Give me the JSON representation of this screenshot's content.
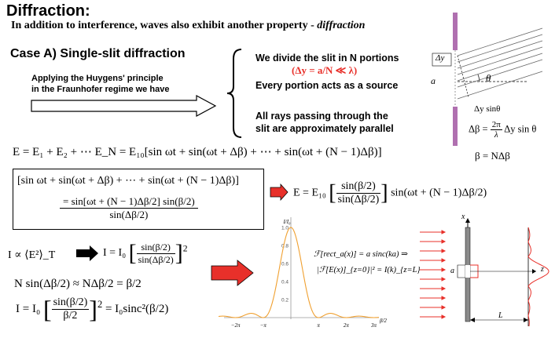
{
  "title": "Diffraction:",
  "subtitle": {
    "lead": "In addition to interference, waves also exhibit another property -",
    "emph": "diffraction"
  },
  "case_heading": "Case A) Single-slit diffraction",
  "huygens": {
    "line1": "Applying the Huygens' principle",
    "line2": "in the Fraunhofer regime we have"
  },
  "bullets": {
    "b1": "We divide the slit in N portions",
    "b1_formula": "(Δy = a/N ≪ λ)",
    "b2": "Every portion acts as a source",
    "b3": "All rays passing through the",
    "b3b": "slit are approximately parallel"
  },
  "slit_figure": {
    "dy_label": "Δy",
    "a_label": "a",
    "theta_label": "θ",
    "dy_sin_label": "Δy sinθ"
  },
  "equations": {
    "delta_beta_lhs": "Δβ =",
    "two_pi": "2π",
    "lambda": "λ",
    "delta_beta_rhs": "Δy sin θ",
    "beta_def": "β = NΔβ",
    "e_sum": "E = E₁ + E₂ + ⋯ E_N = E₁₀[sin ωt + sin(ωt + Δβ) + ⋯ + sin(ωt + (N − 1)Δβ)]",
    "boxed_sum": "[sin ωt + sin(ωt + Δβ) + ⋯ + sin(ωt + (N − 1)Δβ)]",
    "eq_num": "= sin[ωt + (N − 1)Δβ/2] sin(β/2)",
    "eq_den": "sin(Δβ/2)",
    "e_result_lhs": "E = E₁₀",
    "e_result_num": "sin(β/2)",
    "e_result_den": "sin(Δβ/2)",
    "e_result_rhs": "sin(ωt + (N − 1)Δβ/2)",
    "intensity_prop": "I ∝ ⟨E²⟩_T",
    "intensity_lhs": "I = I₀",
    "intensity_num": "sin(β/2)",
    "intensity_den": "sin(Δβ/2)",
    "approx": "N sin(Δβ/2) ≈ NΔβ/2 = β/2",
    "final_lhs": "I = I₀",
    "final_num": "sin(β/2)",
    "final_den": "β/2",
    "final_rhs": "= I₀sinc²(β/2)",
    "fourier_line1": "ℱ[rect_a(x)] = a sinc(ka) ⇒",
    "fourier_line2": "|ℱ[E(x)]_{z=0}|² = I(k)_{z=L}"
  },
  "chart_data": {
    "type": "line",
    "ylabel": "I/I₀",
    "xlabel": "β/2",
    "y_ticks": [
      "0.2",
      "0.4",
      "0.6",
      "0.8",
      "1.0"
    ],
    "x_ticks": [
      "−3π",
      "−2π",
      "−π",
      "π",
      "2π",
      "3π"
    ],
    "xlim": [
      -10.5,
      10.5
    ],
    "ylim": [
      0,
      1.05
    ],
    "series": [
      {
        "color": "#f0a030",
        "function": "sinc²(x)",
        "x": [
          -10,
          -9,
          -8,
          -7,
          -6,
          -5,
          -4.49,
          -4,
          -3.14,
          -2.5,
          -2,
          -1.5,
          -1,
          -0.5,
          0,
          0.5,
          1,
          1.5,
          2,
          2.5,
          3.14,
          4,
          4.49,
          5,
          6,
          7,
          8,
          9,
          10
        ],
        "y": [
          0.003,
          0.002,
          0.015,
          0.009,
          0.002,
          0.037,
          0.047,
          0.036,
          0.0,
          0.057,
          0.207,
          0.442,
          0.708,
          0.919,
          1.0,
          0.919,
          0.708,
          0.442,
          0.207,
          0.057,
          0.0,
          0.036,
          0.047,
          0.037,
          0.002,
          0.009,
          0.015,
          0.002,
          0.003
        ]
      }
    ]
  },
  "screen_figure": {
    "x_label": "x",
    "a_label": "a",
    "z_label": "z",
    "L_label": "L",
    "colors": {
      "rays": "#e8302a",
      "slit": "#8a8a8a",
      "pattern": "#e8302a"
    }
  },
  "colors": {
    "slit_bar": "#b070b0",
    "arrow_red": "#e8302a",
    "chart_line": "#f0a030"
  }
}
